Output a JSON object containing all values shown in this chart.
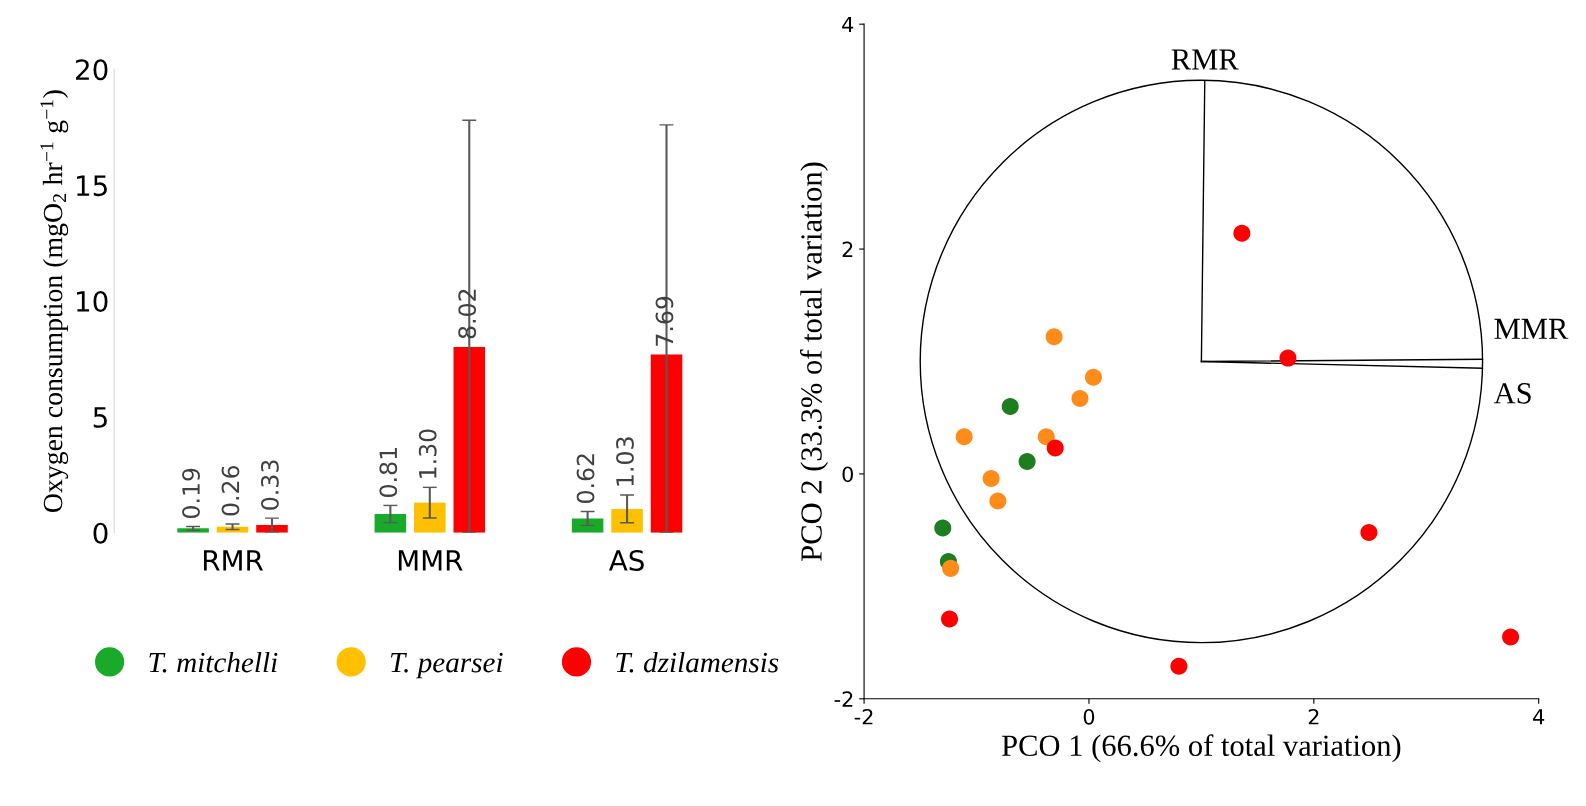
{
  "chart_data": [
    {
      "type": "bar",
      "ylabel": "Oxygen consumption (mgO$_{2}$ hr$^{−1}$ g$^{−1}$)",
      "categories": [
        "RMR",
        "MMR",
        "AS"
      ],
      "ylim": [
        0,
        20
      ],
      "yticks": [
        0,
        5,
        10,
        15,
        20
      ],
      "legend": "bottom",
      "series": [
        {
          "name": "T. mitchelli",
          "color": "#1aaa2a",
          "values": [
            0.19,
            0.81,
            0.62
          ],
          "errors": [
            0.08,
            0.37,
            0.3
          ],
          "value_labels": [
            "0.19",
            "0.81",
            "0.62"
          ]
        },
        {
          "name": "T. pearsei",
          "color": "#ffc000",
          "values": [
            0.26,
            1.3,
            1.03
          ],
          "errors": [
            0.12,
            0.66,
            0.6
          ],
          "value_labels": [
            "0.26",
            "1.30",
            "1.03"
          ]
        },
        {
          "name": "T. dzilamensis",
          "color": "#ff0000",
          "values": [
            0.33,
            8.02,
            7.69
          ],
          "errors": [
            0.3,
            [
              0,
              17.8
            ],
            [
              0,
              17.6
            ]
          ],
          "value_labels": [
            "0.33",
            "8.02",
            "7.69"
          ]
        }
      ]
    },
    {
      "type": "scatter",
      "xlabel": "PCO 1 (66.6% of total variation)",
      "ylabel": "PCO 2 (33.3% of total variation)",
      "xlim": [
        -2,
        4
      ],
      "ylim": [
        -2,
        4
      ],
      "xticks": [
        -2,
        0,
        2,
        4
      ],
      "yticks": [
        -2,
        0,
        2,
        4
      ],
      "series": [
        {
          "color": "#1e7d1e",
          "marker": "circle",
          "x": [
            -0.7,
            -0.55,
            -1.3,
            -1.25
          ],
          "values": [
            0.6,
            0.11,
            -0.48,
            -0.78
          ]
        },
        {
          "color": "#ff8c1a",
          "marker": "circle",
          "x": [
            -0.31,
            0.04,
            -0.08,
            -0.38,
            -1.11,
            -0.87,
            -0.81,
            -1.23
          ],
          "values": [
            1.22,
            0.86,
            0.67,
            0.33,
            0.33,
            -0.04,
            -0.24,
            -0.84
          ]
        },
        {
          "color": "#ff0000",
          "marker": "circle",
          "x": [
            1.36,
            1.77,
            2.49,
            3.75,
            0.8,
            -0.3,
            -1.24
          ],
          "values": [
            2.14,
            1.03,
            -0.52,
            -1.45,
            -1.71,
            0.23,
            -1.29
          ]
        },
        {
          "type": "line",
          "color": "#000000",
          "x": [
            1.0,
            1.03
          ],
          "values": [
            1.0,
            3.49
          ]
        },
        {
          "type": "line",
          "color": "#000000",
          "x": [
            1.0,
            3.5
          ],
          "values": [
            1.0,
            1.02
          ]
        },
        {
          "type": "line",
          "color": "#000000",
          "x": [
            1.0,
            3.5
          ],
          "values": [
            1.0,
            0.94
          ]
        }
      ],
      "annotations": [
        "RMR",
        "MMR",
        "AS"
      ]
    }
  ]
}
